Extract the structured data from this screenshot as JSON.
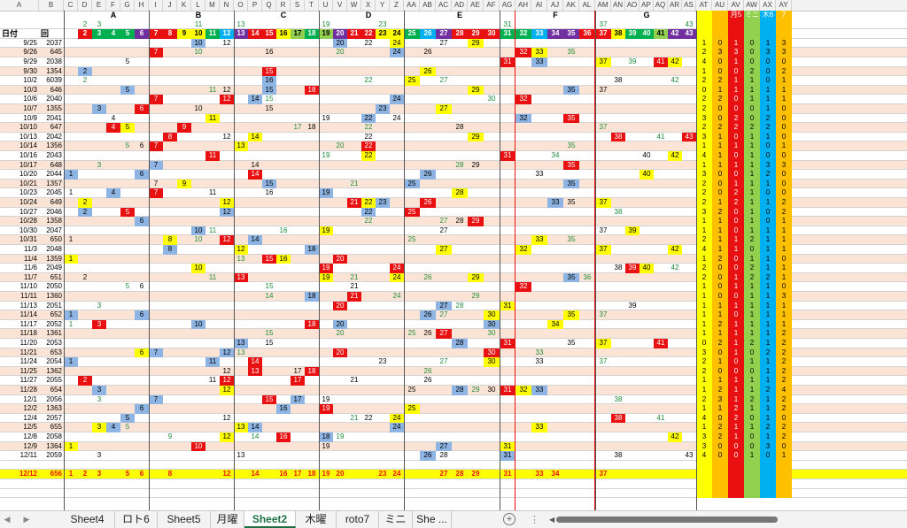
{
  "columns": [
    "A",
    "B",
    "C",
    "D",
    "E",
    "F",
    "G",
    "H",
    "I",
    "J",
    "K",
    "L",
    "M",
    "N",
    "O",
    "P",
    "Q",
    "R",
    "S",
    "T",
    "U",
    "V",
    "W",
    "X",
    "Y",
    "Z",
    "AA",
    "AB",
    "AC",
    "AD",
    "AE",
    "AF",
    "AG",
    "AH",
    "AI",
    "AJ",
    "AK",
    "AL",
    "AM",
    "AN",
    "AO",
    "AP",
    "AQ",
    "AR",
    "AS",
    "AT",
    "AU",
    "AV",
    "AW",
    "AX",
    "AY"
  ],
  "groups": [
    {
      "label": "A",
      "col": "F"
    },
    {
      "label": "B",
      "col": "L"
    },
    {
      "label": "C",
      "col": "R"
    },
    {
      "label": "D",
      "col": "X"
    },
    {
      "label": "E",
      "col": "AD"
    },
    {
      "label": "F",
      "col": "AJ"
    },
    {
      "label": "G",
      "col": "AP"
    }
  ],
  "summary_header": {
    "AV": "月5",
    "AW": "ミニ",
    "AX": "木6",
    "AY": "7"
  },
  "colors": {
    "red": "#e81010",
    "yellow": "#ffff00",
    "green": "#00b050",
    "blue": "#8db4e2",
    "orange": "#ffc000",
    "lime": "#92d050",
    "teal": "#00b0f0",
    "purple": "#7030a0",
    "pink": "#fbe4d5",
    "grid": "#d4d4d4",
    "green_text": "#1e8c3a",
    "redline": "#e81010"
  },
  "rows": [
    {
      "type": "top",
      "cells": {
        "D": "2",
        "E": "3",
        "L": "11",
        "O": "13",
        "U": "19",
        "Y": "23",
        "AG": "31",
        "AM": "37",
        "AS": "43"
      }
    },
    {
      "type": "colorbar",
      "cells": {
        "A": "日付",
        "B": "回",
        "D": "2",
        "E": "3",
        "F": "4",
        "G": "5",
        "H": "6",
        "I": "7",
        "J": "8",
        "K": "9",
        "L": "10",
        "M": "11",
        "N": "12",
        "O": "13",
        "P": "14",
        "Q": "15",
        "R": "16",
        "S": "17",
        "T": "18",
        "U": "19",
        "V": "20",
        "W": "21",
        "X": "22",
        "Y": "23",
        "Z": "24",
        "AA": "25",
        "AB": "26",
        "AC": "27",
        "AD": "28",
        "AE": "29",
        "AF": "30",
        "AG": "31",
        "AH": "32",
        "AI": "33",
        "AJ": "34",
        "AK": "35",
        "AL": "36",
        "AM": "37",
        "AN": "38",
        "AO": "39",
        "AP": "40",
        "AQ": "41",
        "AR": "42",
        "AS": "43"
      }
    },
    {
      "date": "9/25",
      "no": "2037",
      "cells": {
        "L": "10",
        "N": "12",
        "V": "20",
        "X": "22",
        "Z": "24",
        "AC": "27",
        "AE": "29"
      },
      "sum": [
        "1",
        "0",
        "1",
        "0",
        "1",
        "3"
      ]
    },
    {
      "date": "9/26",
      "no": "645",
      "cells": {
        "I": "7",
        "L": "10",
        "Q": "16",
        "V": "20",
        "Z": "24",
        "AB": "26",
        "AH": "32",
        "AI": "33",
        "AK": "35"
      },
      "sum": [
        "2",
        "3",
        "3",
        "0",
        "3",
        "3"
      ]
    },
    {
      "date": "9/29",
      "no": "2038",
      "cells": {
        "G": "5",
        "AG": "31",
        "AI": "33",
        "AM": "37",
        "AO": "39",
        "AQ": "41",
        "AR": "42"
      },
      "sum": [
        "4",
        "0",
        "1",
        "0",
        "0",
        "0"
      ]
    },
    {
      "date": "9/30",
      "no": "1354",
      "cells": {
        "D": "2",
        "Q": "15",
        "AB": "26"
      },
      "sum": [
        "1",
        "0",
        "0",
        "2",
        "0",
        "2"
      ]
    },
    {
      "date": "10/2",
      "no": "6039",
      "cells": {
        "D": "2",
        "Q": "16",
        "X": "22",
        "AA": "25",
        "AC": "27",
        "AN": "38",
        "AR": "42"
      },
      "sum": [
        "2",
        "2",
        "1",
        "1",
        "0",
        "1"
      ]
    },
    {
      "date": "10/3",
      "no": "646",
      "cells": {
        "G": "5",
        "M": "11",
        "N": "12",
        "Q": "15",
        "T": "18",
        "AE": "29",
        "AK": "35",
        "AM": "37"
      },
      "sum": [
        "0",
        "1",
        "1",
        "1",
        "1",
        "1"
      ]
    },
    {
      "date": "10/6",
      "no": "2040",
      "cells": {
        "I": "7",
        "N": "12",
        "P": "14",
        "Q": "15",
        "Z": "24",
        "AF": "30",
        "AH": "32"
      },
      "sum": [
        "2",
        "2",
        "0",
        "1",
        "1",
        "1"
      ]
    },
    {
      "date": "10/7",
      "no": "1355",
      "cells": {
        "E": "3",
        "H": "6",
        "L": "10",
        "Q": "15",
        "Y": "23",
        "AC": "27"
      },
      "sum": [
        "2",
        "0",
        "0",
        "0",
        "1",
        "0"
      ]
    },
    {
      "date": "10/9",
      "no": "2041",
      "cells": {
        "F": "4",
        "M": "11",
        "U": "19",
        "X": "22",
        "Z": "24",
        "AH": "32",
        "AK": "35"
      },
      "sum": [
        "3",
        "0",
        "2",
        "0",
        "2",
        "0"
      ]
    },
    {
      "date": "10/10",
      "no": "647",
      "cells": {
        "F": "4",
        "G": "5",
        "K": "9",
        "S": "17",
        "T": "18",
        "X": "22",
        "AD": "28",
        "AM": "37"
      },
      "sum": [
        "2",
        "2",
        "2",
        "2",
        "2",
        "0"
      ]
    },
    {
      "date": "10/13",
      "no": "2042",
      "cells": {
        "J": "8",
        "N": "12",
        "P": "14",
        "X": "22",
        "AE": "29",
        "AN": "38",
        "AQ": "41",
        "AS": "43"
      },
      "sum": [
        "3",
        "1",
        "0",
        "1",
        "1",
        "0"
      ]
    },
    {
      "date": "10/14",
      "no": "1356",
      "cells": {
        "G": "5",
        "H": "6",
        "I": "7",
        "O": "13",
        "V": "20",
        "X": "22",
        "AK": "35"
      },
      "sum": [
        "1",
        "1",
        "1",
        "1",
        "0",
        "1"
      ]
    },
    {
      "date": "10/16",
      "no": "2043",
      "cells": {
        "M": "11",
        "U": "19",
        "X": "22",
        "AG": "31",
        "AJ": "34",
        "AP": "40",
        "AR": "42"
      },
      "sum": [
        "4",
        "1",
        "0",
        "1",
        "0",
        "0"
      ]
    },
    {
      "date": "10/17",
      "no": "648",
      "cells": {
        "E": "3",
        "I": "7",
        "P": "14",
        "AD": "28",
        "AE": "29",
        "AK": "35"
      },
      "sum": [
        "1",
        "1",
        "1",
        "1",
        "3",
        "3"
      ]
    },
    {
      "date": "10/20",
      "no": "2044",
      "cells": {
        "C": "1",
        "H": "6",
        "P": "14",
        "AB": "26",
        "AI": "33",
        "AP": "40"
      },
      "sum": [
        "3",
        "0",
        "0",
        "1",
        "2",
        "0"
      ]
    },
    {
      "date": "10/21",
      "no": "1357",
      "cells": {
        "I": "7",
        "K": "9",
        "Q": "15",
        "W": "21",
        "AA": "25",
        "AK": "35"
      },
      "sum": [
        "2",
        "0",
        "1",
        "1",
        "1",
        "0"
      ]
    },
    {
      "date": "10/23",
      "no": "2045",
      "cells": {
        "C": "1",
        "F": "4",
        "I": "7",
        "M": "11",
        "Q": "16",
        "U": "19",
        "AD": "28"
      },
      "sum": [
        "2",
        "0",
        "2",
        "1",
        "0",
        "0"
      ]
    },
    {
      "date": "10/24",
      "no": "649",
      "cells": {
        "D": "2",
        "N": "12",
        "W": "21",
        "X": "22",
        "Y": "23",
        "AB": "26",
        "AJ": "33",
        "AK": "35",
        "AM": "37"
      },
      "sum": [
        "2",
        "1",
        "2",
        "1",
        "1",
        "2"
      ]
    },
    {
      "date": "10/27",
      "no": "2046",
      "cells": {
        "D": "2",
        "G": "5",
        "N": "12",
        "X": "22",
        "AA": "25",
        "AN": "38"
      },
      "sum": [
        "3",
        "2",
        "0",
        "1",
        "0",
        "2"
      ]
    },
    {
      "date": "10/28",
      "no": "1358",
      "cells": {
        "H": "6",
        "X": "22",
        "AC": "27",
        "AD": "28",
        "AE": "29"
      },
      "sum": [
        "1",
        "1",
        "0",
        "1",
        "0",
        "1"
      ]
    },
    {
      "date": "10/30",
      "no": "2047",
      "cells": {
        "L": "10",
        "M": "11",
        "R": "16",
        "U": "19",
        "AC": "27",
        "AM": "37",
        "AO": "39"
      },
      "sum": [
        "1",
        "1",
        "0",
        "1",
        "1",
        "1"
      ]
    },
    {
      "date": "10/31",
      "no": "650",
      "cells": {
        "C": "1",
        "J": "8",
        "L": "10",
        "N": "12",
        "P": "14",
        "AA": "25",
        "AI": "33",
        "AK": "35"
      },
      "sum": [
        "2",
        "1",
        "1",
        "2",
        "1",
        "1"
      ]
    },
    {
      "date": "11/3",
      "no": "2048",
      "cells": {
        "J": "8",
        "O": "12",
        "T": "18",
        "AC": "27",
        "AH": "32",
        "AM": "37",
        "AR": "42"
      },
      "sum": [
        "4",
        "1",
        "1",
        "0",
        "1",
        "1"
      ]
    },
    {
      "date": "11/4",
      "no": "1359",
      "cells": {
        "C": "1",
        "O": "13",
        "Q": "15",
        "R": "16",
        "V": "20"
      },
      "sum": [
        "1",
        "2",
        "0",
        "1",
        "1",
        "0"
      ]
    },
    {
      "date": "11/6",
      "no": "2049",
      "cells": {
        "L": "10",
        "U": "19",
        "Z": "24",
        "AN": "38",
        "AO": "39",
        "AP": "40",
        "AR": "42"
      },
      "sum": [
        "2",
        "0",
        "0",
        "2",
        "1",
        "1"
      ]
    },
    {
      "date": "11/7",
      "no": "651",
      "cells": {
        "D": "2",
        "M": "11",
        "O": "13",
        "U": "19",
        "W": "21",
        "Z": "24",
        "AB": "26",
        "AE": "29",
        "AK": "35",
        "AL": "36"
      },
      "sum": [
        "2",
        "0",
        "1",
        "2",
        "2",
        "1"
      ]
    },
    {
      "date": "11/10",
      "no": "2050",
      "cells": {
        "G": "5",
        "H": "6",
        "Q": "15",
        "W": "21",
        "AH": "32"
      },
      "sum": [
        "1",
        "0",
        "1",
        "1",
        "1",
        "0"
      ]
    },
    {
      "date": "11/11",
      "no": "1360",
      "cells": {
        "Q": "14",
        "T": "18",
        "W": "21",
        "Z": "24",
        "AE": "29"
      },
      "sum": [
        "1",
        "0",
        "0",
        "1",
        "1",
        "3"
      ]
    },
    {
      "date": "11/13",
      "no": "2051",
      "cells": {
        "E": "3",
        "V": "20",
        "AC": "27",
        "AD": "28",
        "AG": "31",
        "AO": "39"
      },
      "sum": [
        "1",
        "1",
        "1",
        "1",
        "1",
        "1"
      ]
    },
    {
      "date": "11/14",
      "no": "652",
      "cells": {
        "C": "1",
        "H": "6",
        "AB": "26",
        "AC": "27",
        "AF": "30",
        "AK": "35",
        "AM": "37"
      },
      "sum": [
        "1",
        "1",
        "0",
        "1",
        "1",
        "1"
      ]
    },
    {
      "date": "11/17",
      "no": "2052",
      "cells": {
        "C": "1",
        "E": "3",
        "L": "10",
        "T": "18",
        "V": "20",
        "AF": "30",
        "AJ": "34"
      },
      "sum": [
        "1",
        "2",
        "1",
        "1",
        "1",
        "1"
      ]
    },
    {
      "date": "11/18",
      "no": "1361",
      "cells": {
        "Q": "15",
        "V": "20",
        "AA": "25",
        "AB": "26",
        "AC": "27",
        "AF": "30"
      },
      "sum": [
        "1",
        "1",
        "1",
        "1",
        "1",
        "2"
      ]
    },
    {
      "date": "11/20",
      "no": "2053",
      "cells": {
        "O": "13",
        "Q": "15",
        "AD": "28",
        "AG": "31",
        "AK": "35",
        "AM": "37",
        "AQ": "41"
      },
      "sum": [
        "0",
        "2",
        "1",
        "2",
        "1",
        "2"
      ]
    },
    {
      "date": "11/21",
      "no": "653",
      "cells": {
        "H": "6",
        "I": "7",
        "N": "12",
        "O": "13",
        "V": "20",
        "AF": "30",
        "AI": "33"
      },
      "sum": [
        "3",
        "0",
        "1",
        "0",
        "2",
        "2"
      ]
    },
    {
      "date": "11/24",
      "no": "2054",
      "cells": {
        "C": "1",
        "M": "11",
        "P": "14",
        "Y": "23",
        "AC": "27",
        "AF": "30",
        "AI": "33",
        "AM": "37"
      },
      "sum": [
        "2",
        "1",
        "0",
        "1",
        "1",
        "2"
      ]
    },
    {
      "date": "11/25",
      "no": "1362",
      "cells": {
        "N": "12",
        "P": "13",
        "S": "17",
        "T": "18",
        "AB": "26"
      },
      "sum": [
        "2",
        "0",
        "0",
        "0",
        "1",
        "2"
      ]
    },
    {
      "date": "11/27",
      "no": "2055",
      "cells": {
        "D": "2",
        "M": "11",
        "N": "12",
        "S": "17",
        "W": "21",
        "AB": "26"
      },
      "sum": [
        "1",
        "1",
        "1",
        "1",
        "1",
        "2"
      ]
    },
    {
      "date": "11/28",
      "no": "654",
      "cells": {
        "E": "3",
        "N": "12",
        "AA": "25",
        "AD": "28",
        "AE": "29",
        "AF": "30",
        "AG": "31",
        "AH": "32",
        "AI": "33"
      },
      "sum": [
        "1",
        "2",
        "1",
        "1",
        "2",
        "4"
      ]
    },
    {
      "date": "12/1",
      "no": "2056",
      "cells": {
        "E": "3",
        "I": "7",
        "Q": "15",
        "S": "17",
        "U": "19",
        "AN": "38"
      },
      "sum": [
        "2",
        "3",
        "1",
        "2",
        "1",
        "2"
      ]
    },
    {
      "date": "12/2",
      "no": "1363",
      "cells": {
        "H": "6",
        "R": "16",
        "U": "19",
        "AA": "25"
      },
      "sum": [
        "1",
        "1",
        "2",
        "1",
        "1",
        "2"
      ]
    },
    {
      "date": "12/4",
      "no": "2057",
      "cells": {
        "G": "5",
        "N": "12",
        "W": "21",
        "X": "22",
        "Z": "24",
        "AN": "38",
        "AQ": "41"
      },
      "sum": [
        "4",
        "0",
        "2",
        "0",
        "1",
        "0"
      ]
    },
    {
      "date": "12/5",
      "no": "655",
      "cells": {
        "E": "3",
        "F": "4",
        "G": "5",
        "O": "13",
        "P": "14",
        "Z": "24",
        "AI": "33"
      },
      "sum": [
        "1",
        "2",
        "1",
        "1",
        "2",
        "2"
      ]
    },
    {
      "date": "12/8",
      "no": "2058",
      "cells": {
        "J": "9",
        "N": "12",
        "P": "14",
        "R": "16",
        "U": "18",
        "V": "19",
        "AR": "42"
      },
      "sum": [
        "3",
        "2",
        "1",
        "0",
        "1",
        "2"
      ]
    },
    {
      "date": "12/9",
      "no": "1364",
      "cells": {
        "C": "1",
        "L": "10",
        "U": "19",
        "AC": "27",
        "AG": "31"
      },
      "sum": [
        "3",
        "0",
        "0",
        "0",
        "3",
        "0"
      ]
    },
    {
      "date": "12/11",
      "no": "2059",
      "cells": {
        "E": "3",
        "O": "13",
        "AB": "26",
        "AC": "28",
        "AG": "31",
        "AN": "38",
        "AS": "43"
      },
      "sum": [
        "4",
        "0",
        "0",
        "1",
        "0",
        "1"
      ]
    },
    {
      "type": "empty"
    },
    {
      "type": "total",
      "date": "12/12",
      "no": "656",
      "cells": {
        "C": "1",
        "D": "2",
        "E": "3",
        "G": "5",
        "H": "6",
        "J": "8",
        "N": "12",
        "P": "14",
        "R": "16",
        "S": "17",
        "T": "18",
        "U": "19",
        "V": "20",
        "Y": "23",
        "Z": "24",
        "AC": "27",
        "AD": "28",
        "AE": "29",
        "AG": "31",
        "AI": "33",
        "AJ": "34",
        "AM": "37"
      }
    },
    {
      "type": "empty"
    },
    {
      "type": "empty"
    }
  ],
  "tabs": [
    "Sheet4",
    "ロト6",
    "Sheet5",
    "月曜",
    "Sheet2",
    "木曜",
    "roto7",
    "ミニ",
    "She ..."
  ],
  "active_tab": "Sheet2",
  "nav": {
    "prev": "◀",
    "next": "▶",
    "add": "+",
    "more": "⋮",
    "scroll_left": "◀"
  }
}
